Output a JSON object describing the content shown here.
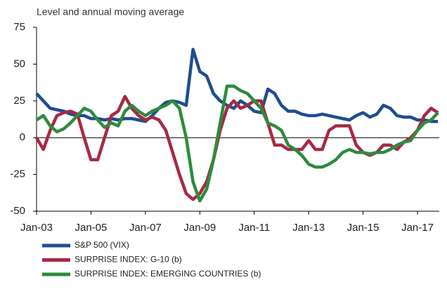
{
  "chart_data": {
    "type": "line",
    "subtitle": "Level and annual moving average",
    "x": [
      2003.0,
      2003.25,
      2003.5,
      2003.75,
      2004.0,
      2004.25,
      2004.5,
      2004.75,
      2005.0,
      2005.25,
      2005.5,
      2005.75,
      2006.0,
      2006.25,
      2006.5,
      2006.75,
      2007.0,
      2007.25,
      2007.5,
      2007.75,
      2008.0,
      2008.25,
      2008.5,
      2008.75,
      2009.0,
      2009.25,
      2009.5,
      2009.75,
      2010.0,
      2010.25,
      2010.5,
      2010.75,
      2011.0,
      2011.25,
      2011.5,
      2011.75,
      2012.0,
      2012.25,
      2012.5,
      2012.75,
      2013.0,
      2013.25,
      2013.5,
      2013.75,
      2014.0,
      2014.25,
      2014.5,
      2014.75,
      2015.0,
      2015.25,
      2015.5,
      2015.75,
      2016.0,
      2016.25,
      2016.5,
      2016.75,
      2017.0,
      2017.25,
      2017.5,
      2017.75
    ],
    "series": [
      {
        "name": "S&P 500 (VIX)",
        "color": "#1f4e8c",
        "values": [
          30,
          25,
          20,
          19,
          18,
          16,
          15,
          15,
          13,
          13,
          12,
          13,
          12,
          13,
          13,
          12,
          11,
          15,
          20,
          24,
          25,
          24,
          22,
          60,
          45,
          42,
          30,
          25,
          22,
          20,
          25,
          22,
          18,
          17,
          33,
          30,
          22,
          18,
          18,
          16,
          15,
          15,
          16,
          15,
          14,
          13,
          12,
          15,
          17,
          14,
          16,
          22,
          20,
          15,
          14,
          14,
          12,
          12,
          11,
          11
        ]
      },
      {
        "name": "SURPRISE INDEX: G-10 (b)",
        "color": "#a62a44",
        "values": [
          0,
          -8,
          5,
          15,
          17,
          18,
          16,
          0,
          -15,
          -15,
          0,
          15,
          18,
          28,
          20,
          15,
          12,
          14,
          12,
          5,
          -10,
          -25,
          -38,
          -42,
          -38,
          -30,
          -15,
          5,
          20,
          25,
          20,
          22,
          25,
          25,
          10,
          -5,
          -5,
          -8,
          -8,
          -8,
          -2,
          -8,
          -8,
          5,
          8,
          8,
          8,
          -5,
          -10,
          -12,
          -10,
          -5,
          -5,
          -8,
          -3,
          0,
          5,
          15,
          20,
          17
        ]
      },
      {
        "name": "SURPRISE INDEX: EMERGING COUNTRIES (b)",
        "color": "#2e8b3e",
        "values": [
          12,
          15,
          8,
          4,
          6,
          10,
          15,
          20,
          18,
          12,
          7,
          10,
          8,
          18,
          22,
          18,
          15,
          18,
          20,
          22,
          25,
          20,
          0,
          -30,
          -43,
          -35,
          -15,
          10,
          35,
          35,
          32,
          30,
          25,
          20,
          10,
          8,
          5,
          -5,
          -8,
          -12,
          -18,
          -20,
          -20,
          -18,
          -15,
          -10,
          -8,
          -10,
          -10,
          -11,
          -10,
          -10,
          -8,
          -5,
          -3,
          -2,
          5,
          10,
          12,
          17
        ]
      }
    ],
    "xlim": [
      2003,
      2017.8
    ],
    "xticks": [
      {
        "value": 2003,
        "label": "Jan-03"
      },
      {
        "value": 2005,
        "label": "Jan-05"
      },
      {
        "value": 2007,
        "label": "Jan-07"
      },
      {
        "value": 2009,
        "label": "Jan-09"
      },
      {
        "value": 2011,
        "label": "Jan-11"
      },
      {
        "value": 2013,
        "label": "Jan-13"
      },
      {
        "value": 2015,
        "label": "Jan-15"
      },
      {
        "value": 2017,
        "label": "Jan-17"
      }
    ],
    "ylim": [
      -50,
      75
    ],
    "yticks": [
      75,
      50,
      25,
      0,
      -25,
      -50
    ]
  }
}
